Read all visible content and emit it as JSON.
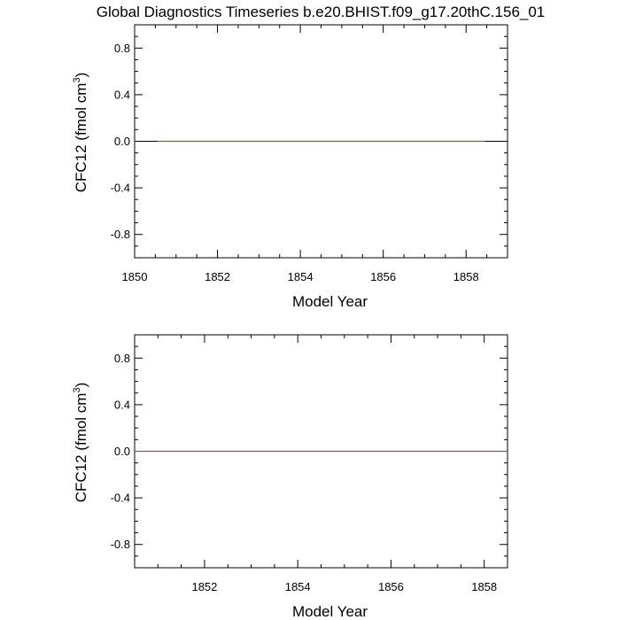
{
  "title": "Global Diagnostics Timeseries b.e20.BHIST.f09_g17.20thC.156_01",
  "colors": {
    "series": "#a0522d",
    "zero_line": "#000000",
    "frame": "#000000"
  },
  "chart_data": [
    {
      "type": "line",
      "title": "Global Diagnostics Timeseries b.e20.BHIST.f09_g17.20thC.156_01",
      "xlabel": "Model Year",
      "ylabel_main": "CFC12 (fmol cm",
      "ylabel_exp": "3",
      "ylabel_tail": ")",
      "xlim": [
        1850,
        1859
      ],
      "ylim": [
        -1.0,
        1.0
      ],
      "x_ticks": [
        1850,
        1852,
        1854,
        1856,
        1858
      ],
      "x_tick_labels": [
        "1850",
        "1852",
        "1854",
        "1856",
        "1858"
      ],
      "y_ticks": [
        -0.8,
        -0.4,
        0.0,
        0.4,
        0.8
      ],
      "y_tick_labels": [
        "-0.8",
        "-0.4",
        "0.0",
        "0.4",
        "0.8"
      ],
      "reference_line": 0.0,
      "grid": false,
      "series": [
        {
          "x": [
            1850.55,
            1858.45
          ],
          "y": [
            0.0,
            0.0
          ]
        }
      ]
    },
    {
      "type": "line",
      "xlabel": "Model Year",
      "ylabel_main": "CFC12 (fmol cm",
      "ylabel_exp": "3",
      "ylabel_tail": ")",
      "xlim": [
        1850.5,
        1858.5
      ],
      "ylim": [
        -1.0,
        1.0
      ],
      "x_ticks": [
        1852,
        1854,
        1856,
        1858
      ],
      "x_tick_labels": [
        "1852",
        "1854",
        "1856",
        "1858"
      ],
      "y_ticks": [
        -0.8,
        -0.4,
        0.0,
        0.4,
        0.8
      ],
      "y_tick_labels": [
        "-0.8",
        "-0.4",
        "0.0",
        "0.4",
        "0.8"
      ],
      "reference_line": 0.0,
      "grid": false,
      "series": [
        {
          "x": [
            1850.5,
            1858.5
          ],
          "y": [
            0.0,
            0.0
          ]
        }
      ]
    }
  ]
}
